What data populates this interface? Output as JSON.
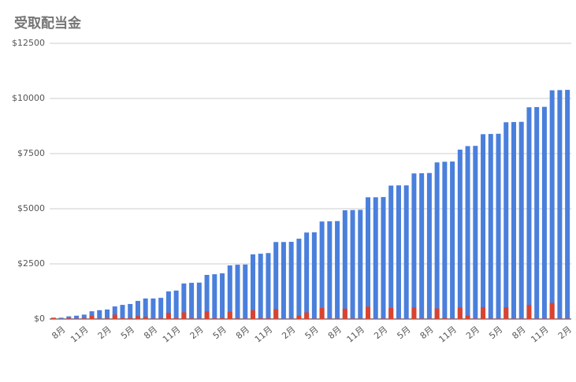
{
  "chart_data": {
    "type": "bar",
    "title": "受取配当金",
    "categories": [
      null,
      "8月",
      null,
      null,
      "11月",
      null,
      null,
      "2月",
      null,
      null,
      "5月",
      null,
      null,
      "8月",
      null,
      null,
      "11月",
      null,
      null,
      "2月",
      null,
      null,
      "5月",
      null,
      null,
      "8月",
      null,
      null,
      "11月",
      null,
      null,
      "2月",
      null,
      null,
      "5月",
      null,
      null,
      "8月",
      null,
      null,
      "11月",
      null,
      null,
      "2月",
      null,
      null,
      "5月",
      null,
      null,
      "8月",
      null,
      null,
      "11月",
      null,
      null,
      "2月",
      null,
      null,
      "5月",
      null,
      null,
      "8月",
      null,
      null,
      "11月",
      null,
      null,
      "2月"
    ],
    "series": [
      {
        "color": "#4a7fdc",
        "values": [
          40,
          60,
          120,
          150,
          200,
          350,
          400,
          430,
          570,
          640,
          680,
          820,
          930,
          930,
          960,
          1250,
          1290,
          1610,
          1640,
          1650,
          2000,
          2030,
          2070,
          2430,
          2460,
          2470,
          2930,
          2960,
          2990,
          3490,
          3490,
          3500,
          3640,
          3920,
          3930,
          4420,
          4430,
          4440,
          4930,
          4940,
          4950,
          5520,
          5520,
          5530,
          6050,
          6060,
          6060,
          6600,
          6610,
          6620,
          7100,
          7130,
          7140,
          7680,
          7840,
          7850,
          8380,
          8390,
          8400,
          8920,
          8930,
          8940,
          9600,
          9610,
          9620,
          10370,
          10380,
          10390
        ]
      },
      {
        "color": "#d9432f",
        "values": [
          60,
          10,
          30,
          20,
          30,
          150,
          20,
          30,
          200,
          40,
          40,
          130,
          100,
          20,
          30,
          280,
          40,
          300,
          30,
          20,
          350,
          30,
          40,
          330,
          30,
          20,
          400,
          30,
          30,
          450,
          10,
          20,
          150,
          300,
          20,
          500,
          20,
          20,
          470,
          20,
          20,
          560,
          10,
          20,
          500,
          20,
          10,
          520,
          20,
          20,
          480,
          40,
          20,
          520,
          150,
          20,
          540,
          20,
          20,
          530,
          20,
          20,
          640,
          20,
          20,
          730,
          20,
          20
        ]
      }
    ],
    "ylim": [
      0,
      12500
    ],
    "yticks": [
      {
        "value": 0,
        "label": "$0"
      },
      {
        "value": 2500,
        "label": "$2500"
      },
      {
        "value": 5000,
        "label": "$5000"
      },
      {
        "value": 7500,
        "label": "$7500"
      },
      {
        "value": 10000,
        "label": "$10000"
      },
      {
        "value": 12500,
        "label": "$12500"
      }
    ],
    "grid": true
  }
}
